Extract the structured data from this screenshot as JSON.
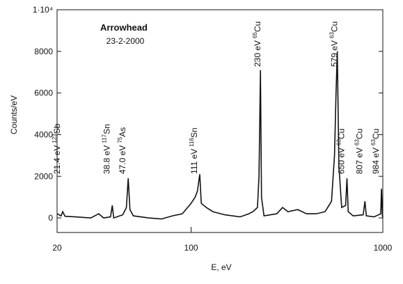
{
  "chart_data": {
    "type": "line",
    "title": "Arrowhead",
    "subtitle": "23-2-2000",
    "x_label": "E, eV",
    "y_label": "Counts/eV",
    "log_x": true,
    "color": "#111111",
    "xlim": [
      20,
      1000
    ],
    "xticks": [
      20,
      100,
      1000
    ],
    "ylim": [
      -700,
      10000
    ],
    "yticks": [
      0,
      2000,
      4000,
      6000,
      8000,
      {
        "value": 10000,
        "label": "1·10⁴"
      }
    ],
    "x": [
      20,
      21,
      21.4,
      22,
      25,
      30,
      33,
      35,
      38,
      38.8,
      39.5,
      44,
      46,
      47.0,
      48,
      50,
      60,
      70,
      80,
      90,
      100,
      105,
      108,
      111,
      113,
      120,
      130,
      150,
      180,
      200,
      210,
      222,
      226,
      230,
      233,
      240,
      280,
      300,
      320,
      360,
      400,
      450,
      500,
      540,
      560,
      570,
      579,
      590,
      610,
      640,
      650,
      660,
      700,
      790,
      807,
      820,
      900,
      975,
      984,
      995,
      1000
    ],
    "values": [
      200,
      100,
      300,
      80,
      50,
      0,
      200,
      0,
      50,
      600,
      0,
      150,
      500,
      1900,
      400,
      100,
      0,
      -50,
      100,
      200,
      700,
      1000,
      1300,
      2100,
      700,
      500,
      300,
      150,
      50,
      200,
      300,
      500,
      2000,
      7100,
      1000,
      100,
      200,
      500,
      300,
      400,
      200,
      200,
      300,
      800,
      3000,
      6000,
      8000,
      2500,
      500,
      600,
      1900,
      300,
      100,
      150,
      800,
      100,
      50,
      200,
      1400,
      100,
      0
    ],
    "annotations": [
      {
        "text": "21.4 eV",
        "mass": "123",
        "element": "Sb",
        "x": 21.4
      },
      {
        "text": "38.8 eV",
        "mass": "117",
        "element": "Sn",
        "x": 38.8
      },
      {
        "text": "47.0 eV",
        "mass": "75",
        "element": "As",
        "x": 47.0
      },
      {
        "text": "111 eV",
        "mass": "116",
        "element": "Sn",
        "x": 111
      },
      {
        "text": "230 eV",
        "mass": "65",
        "element": "Cu",
        "x": 230
      },
      {
        "text": "579 eV",
        "mass": "63",
        "element": "Cu",
        "x": 579
      },
      {
        "text": "650 eV",
        "mass": "63",
        "element": "Cu",
        "x": 650
      },
      {
        "text": "807 eV",
        "mass": "63",
        "element": "Cu",
        "x": 807
      },
      {
        "text": "984 eV",
        "mass": "63",
        "element": "Cu",
        "x": 984
      }
    ]
  }
}
